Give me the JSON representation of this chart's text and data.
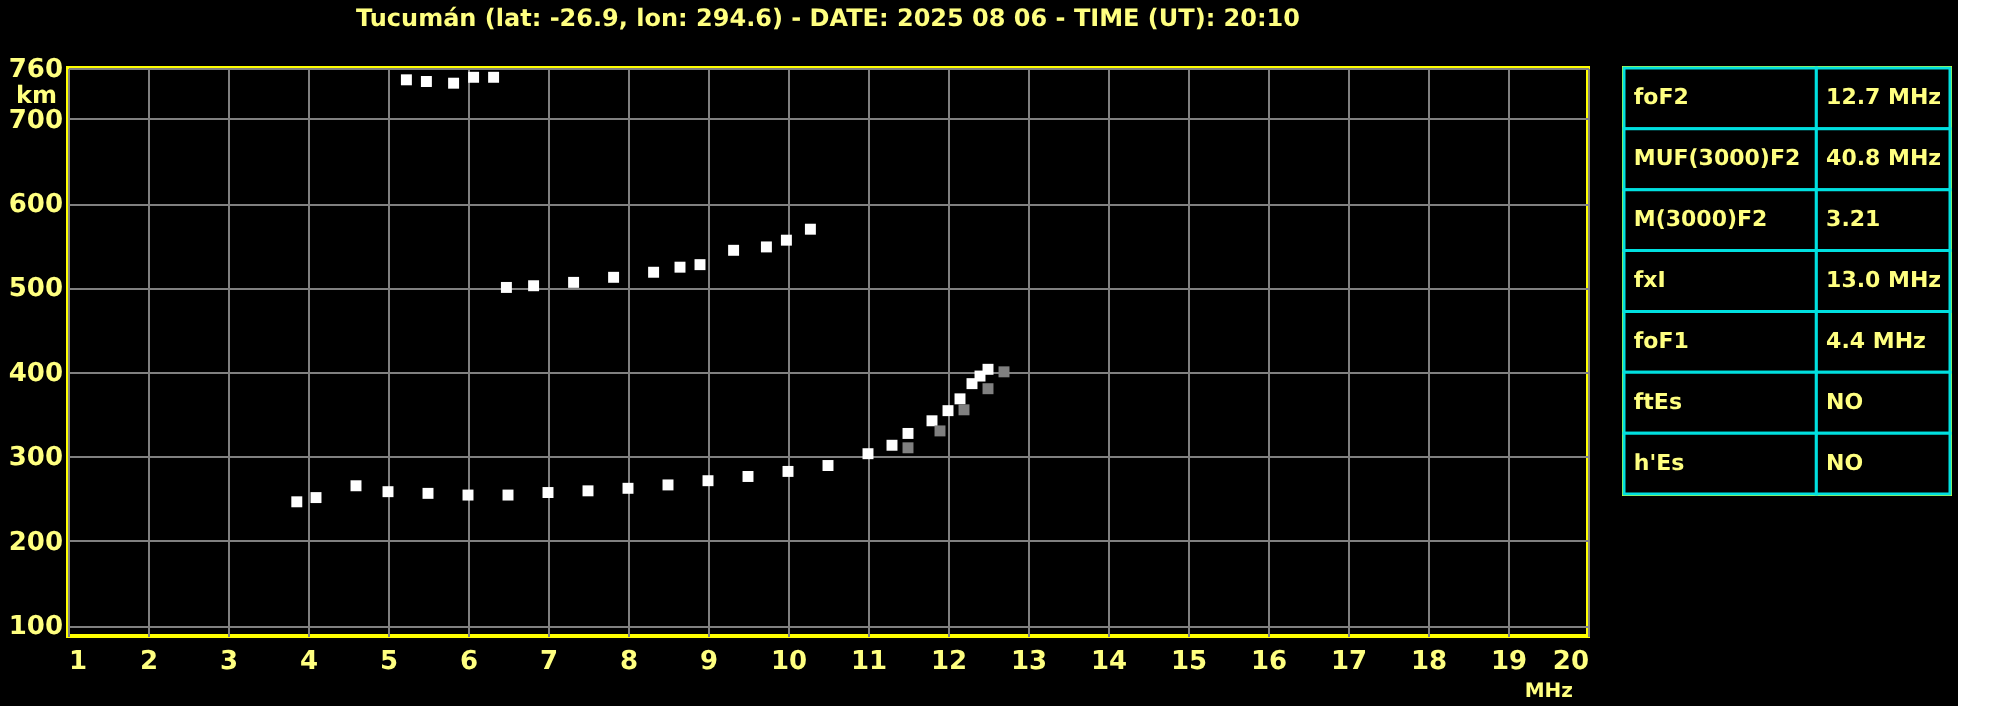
{
  "chart_data": [
    {
      "type": "scatter",
      "title": "Tucumán (lat: -26.9, lon: 294.6) - DATE: 2025 08 06 - TIME (UT): 20:10",
      "xlabel": "MHz",
      "ylabel": "km",
      "xlim": [
        1,
        20
      ],
      "xticks": [
        1,
        2,
        3,
        4,
        5,
        6,
        7,
        8,
        9,
        10,
        11,
        12,
        13,
        14,
        15,
        16,
        17,
        18,
        19,
        20
      ],
      "ylim": [
        87,
        760
      ],
      "yticks": [
        100,
        200,
        300,
        400,
        500,
        600,
        700,
        760
      ],
      "grid": true,
      "marker": "square",
      "series": [
        {
          "color": "#ffffff",
          "x": [
            3.86,
            4.1,
            4.6,
            5.0,
            5.5,
            6.0,
            6.5,
            7.0,
            7.5,
            8.0,
            8.5,
            9.0,
            9.5,
            10.0,
            10.5,
            11.0,
            11.3,
            11.5,
            11.8,
            12.0,
            12.15,
            12.3,
            12.4,
            12.5
          ],
          "values": [
            246,
            251,
            265,
            258,
            256,
            254,
            254,
            257,
            259,
            262,
            266,
            271,
            276,
            282,
            289,
            303,
            313,
            327,
            342,
            354,
            368,
            386,
            395,
            403
          ]
        },
        {
          "color": "#808080",
          "x": [
            11.5,
            11.9,
            12.2,
            12.5,
            12.7
          ],
          "values": [
            310,
            330,
            355,
            380,
            400
          ]
        },
        {
          "color": "#ffffff",
          "x": [
            6.48,
            6.82,
            7.32,
            7.82,
            8.32,
            8.65,
            8.9,
            9.32,
            9.73,
            9.98,
            10.28
          ],
          "values": [
            500,
            502,
            506,
            512,
            518,
            524,
            527,
            544,
            548,
            556,
            569
          ]
        },
        {
          "color": "#ffffff",
          "x": [
            5.23,
            5.48,
            5.82,
            6.07,
            6.32
          ],
          "values": [
            746,
            744,
            742,
            749,
            749
          ]
        }
      ]
    },
    {
      "type": "other",
      "annotations": [
        "foF2",
        "12.7 MHz",
        "MUF(3000)F2",
        "40.8 MHz",
        "M(3000)F2",
        "3.21",
        "fxI",
        "13.0 MHz",
        "foF1",
        "4.4 MHz",
        "ftEs",
        "NO",
        "h'Es",
        "NO"
      ]
    }
  ]
}
